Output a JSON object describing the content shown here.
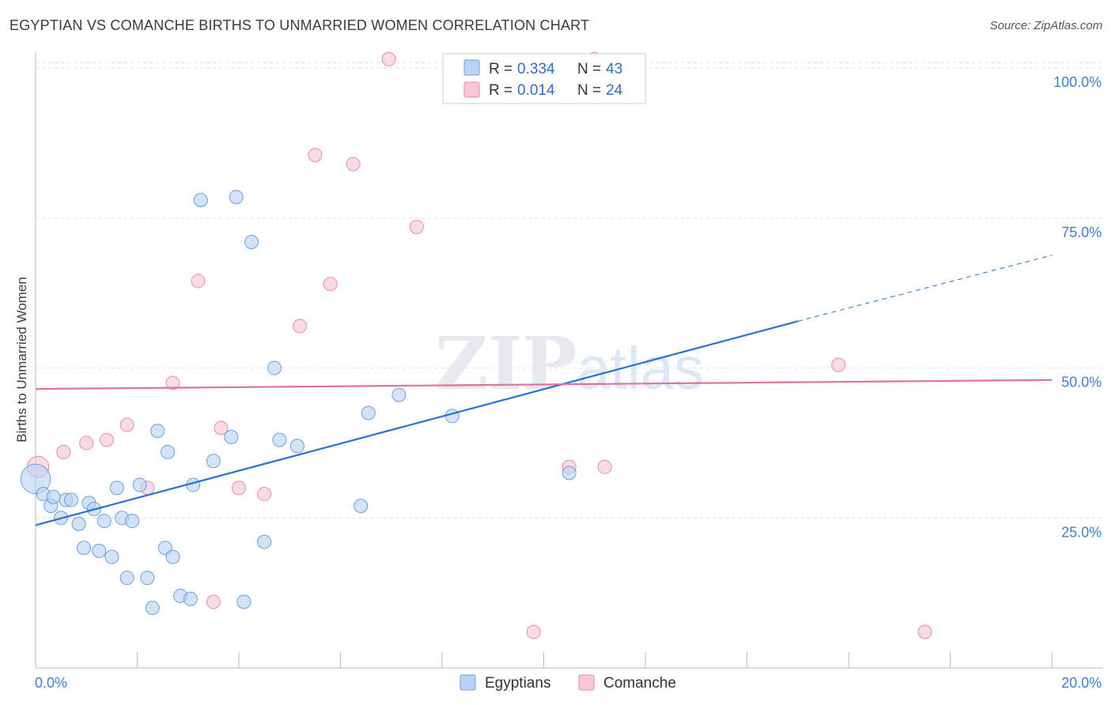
{
  "title": "EGYPTIAN VS COMANCHE BIRTHS TO UNMARRIED WOMEN CORRELATION CHART",
  "source": "Source: ZipAtlas.com",
  "watermark": "ZIPatlas",
  "colors": {
    "egyptians_fill": "#b8d3f5",
    "egyptians_stroke": "#6a9fe0",
    "egyptians_line": "#2a72d4",
    "comanche_fill": "#f8c6d4",
    "comanche_stroke": "#ea8aa8",
    "comanche_line": "#e0739a",
    "axis_text": "#3f7fd0",
    "grid": "#dddddd"
  },
  "legend": {
    "rows": [
      {
        "r_label": "R = ",
        "r_value": "0.334",
        "n_label": "N = ",
        "n_value": "43"
      },
      {
        "r_label": "R = ",
        "r_value": "0.014",
        "n_label": "N = ",
        "n_value": "24"
      }
    ]
  },
  "bottom_legend": [
    "Egyptians",
    "Comanche"
  ],
  "chart_data": {
    "type": "scatter",
    "title": "EGYPTIAN VS COMANCHE BIRTHS TO UNMARRIED WOMEN CORRELATION CHART",
    "xlabel": "",
    "ylabel": "Births to Unmarried Women",
    "xlim": [
      0,
      20
    ],
    "ylim": [
      0,
      102
    ],
    "x_tick_labels": [
      "0.0%",
      "20.0%"
    ],
    "y_ticks": [
      25,
      50,
      75,
      100
    ],
    "y_tick_labels": [
      "25.0%",
      "50.0%",
      "75.0%",
      "100.0%"
    ],
    "grid": true,
    "legend_position": "top-center",
    "series": [
      {
        "name": "Egyptians",
        "r": 0.334,
        "n": 43,
        "points": [
          [
            0.0,
            31.5,
            2.2
          ],
          [
            0.15,
            29.0,
            1
          ],
          [
            0.3,
            27.0,
            1
          ],
          [
            0.35,
            28.5,
            1
          ],
          [
            0.5,
            25.0,
            1
          ],
          [
            0.6,
            28.0,
            1
          ],
          [
            0.7,
            28.0,
            1
          ],
          [
            0.85,
            24.0,
            1
          ],
          [
            0.95,
            20.0,
            1
          ],
          [
            1.05,
            27.5,
            1
          ],
          [
            1.15,
            26.5,
            1
          ],
          [
            1.25,
            19.5,
            1
          ],
          [
            1.35,
            24.5,
            1
          ],
          [
            1.5,
            18.5,
            1
          ],
          [
            1.6,
            30.0,
            1
          ],
          [
            1.7,
            25.0,
            1
          ],
          [
            1.8,
            15.0,
            1
          ],
          [
            1.9,
            24.5,
            1
          ],
          [
            2.05,
            30.5,
            1
          ],
          [
            2.2,
            15.0,
            1
          ],
          [
            2.3,
            10.0,
            1
          ],
          [
            2.4,
            39.5,
            1
          ],
          [
            2.55,
            20.0,
            1
          ],
          [
            2.6,
            36.0,
            1
          ],
          [
            2.7,
            18.5,
            1
          ],
          [
            2.85,
            12.0,
            1
          ],
          [
            3.05,
            11.5,
            1
          ],
          [
            3.1,
            30.5,
            1
          ],
          [
            3.25,
            78.0,
            1
          ],
          [
            3.5,
            34.5,
            1
          ],
          [
            3.85,
            38.5,
            1
          ],
          [
            3.95,
            78.5,
            1
          ],
          [
            4.1,
            11.0,
            1
          ],
          [
            4.25,
            71.0,
            1
          ],
          [
            4.5,
            21.0,
            1
          ],
          [
            4.7,
            50.0,
            1
          ],
          [
            4.8,
            38.0,
            1
          ],
          [
            5.15,
            37.0,
            1
          ],
          [
            6.4,
            27.0,
            1
          ],
          [
            6.55,
            42.5,
            1
          ],
          [
            7.15,
            45.5,
            1
          ],
          [
            8.2,
            42.0,
            1
          ],
          [
            10.5,
            32.5,
            1
          ]
        ],
        "trend": {
          "x0": 0,
          "y0": 23.8,
          "x1": 15.0,
          "y1": 57.8,
          "dash_to_x": 20,
          "dash_to_y": 68.8
        }
      },
      {
        "name": "Comanche",
        "r": 0.014,
        "n": 24,
        "points": [
          [
            0.05,
            33.5,
            1.6
          ],
          [
            0.55,
            36.0,
            1
          ],
          [
            1.0,
            37.5,
            1
          ],
          [
            1.4,
            38.0,
            1
          ],
          [
            1.8,
            40.5,
            1
          ],
          [
            2.2,
            30.0,
            1
          ],
          [
            2.7,
            47.5,
            1
          ],
          [
            3.2,
            64.5,
            1
          ],
          [
            3.5,
            11.0,
            1
          ],
          [
            3.65,
            40.0,
            1
          ],
          [
            4.0,
            30.0,
            1
          ],
          [
            4.5,
            29.0,
            1
          ],
          [
            5.2,
            57.0,
            1
          ],
          [
            5.5,
            85.5,
            1
          ],
          [
            5.8,
            64.0,
            1
          ],
          [
            6.25,
            84.0,
            1
          ],
          [
            6.95,
            101.5,
            1
          ],
          [
            7.5,
            73.5,
            1
          ],
          [
            9.8,
            6.0,
            1
          ],
          [
            10.5,
            33.5,
            1
          ],
          [
            11.0,
            101.5,
            1
          ],
          [
            11.2,
            33.5,
            1
          ],
          [
            15.8,
            50.5,
            1
          ],
          [
            17.5,
            6.0,
            1
          ]
        ],
        "trend": {
          "x0": 0,
          "y0": 46.5,
          "x1": 20,
          "y1": 48.0
        }
      }
    ]
  }
}
